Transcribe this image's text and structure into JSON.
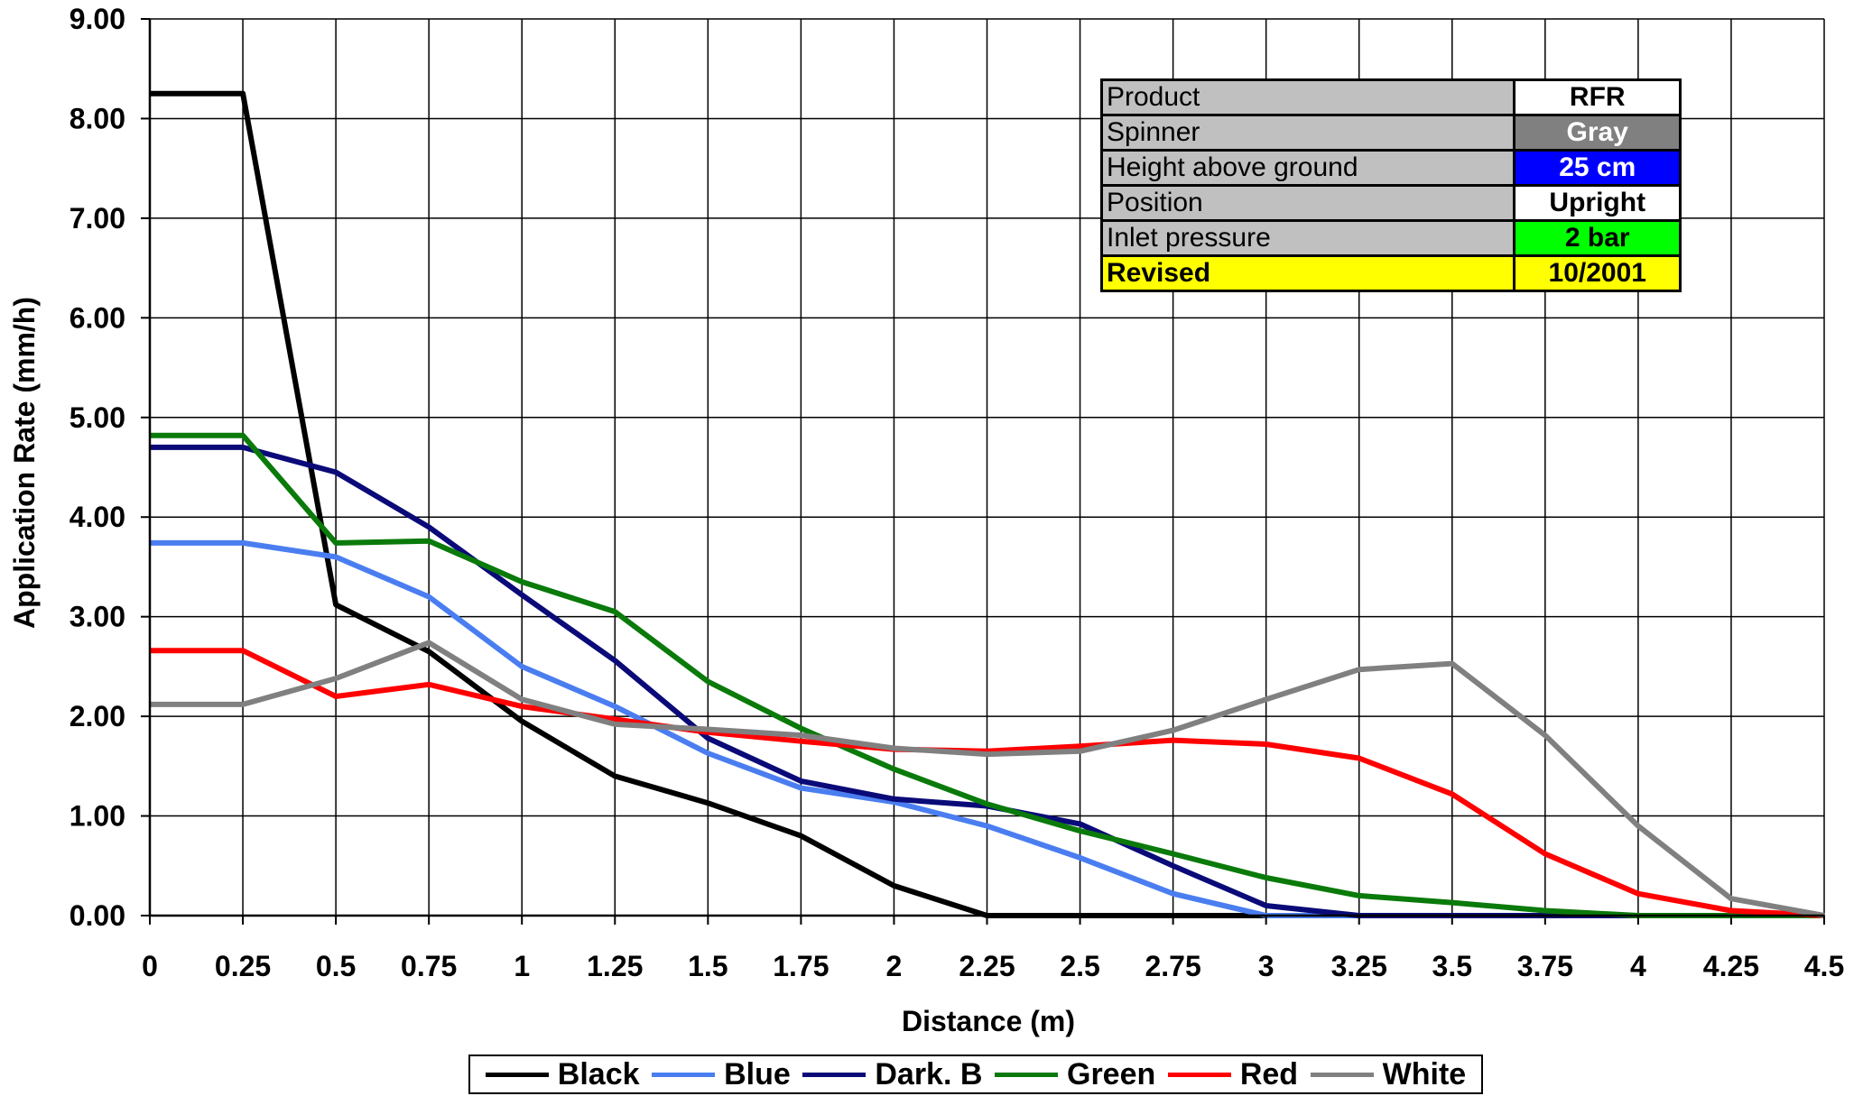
{
  "chart_data": {
    "type": "line",
    "title": "",
    "xlabel": "Distance (m)",
    "ylabel": "Application Rate (mm/h)",
    "x": [
      0,
      0.25,
      0.5,
      0.75,
      1,
      1.25,
      1.5,
      1.75,
      2,
      2.25,
      2.5,
      2.75,
      3,
      3.25,
      3.5,
      3.75,
      4,
      4.25,
      4.5
    ],
    "x_tick_labels": [
      "0",
      "0.25",
      "0.5",
      "0.75",
      "1",
      "1.25",
      "1.5",
      "1.75",
      "2",
      "2.25",
      "2.5",
      "2.75",
      "3",
      "3.25",
      "3.5",
      "3.75",
      "4",
      "4.25",
      "4.5"
    ],
    "y_tick_labels": [
      "0.00",
      "1.00",
      "2.00",
      "3.00",
      "4.00",
      "5.00",
      "6.00",
      "7.00",
      "8.00",
      "9.00"
    ],
    "xlim": [
      0,
      4.5
    ],
    "ylim": [
      0,
      9
    ],
    "grid": true,
    "legend_position": "bottom",
    "series": [
      {
        "name": "Black",
        "color": "#000000",
        "values": [
          8.25,
          8.25,
          3.12,
          2.65,
          1.95,
          1.4,
          1.13,
          0.8,
          0.3,
          0,
          0,
          0,
          0,
          0,
          0,
          0,
          0,
          0,
          0
        ]
      },
      {
        "name": "Blue",
        "color": "#4a7ef0",
        "values": [
          3.74,
          3.74,
          3.6,
          3.2,
          2.5,
          2.1,
          1.63,
          1.28,
          1.14,
          0.9,
          0.58,
          0.22,
          0,
          0,
          0,
          0,
          0,
          0,
          0
        ]
      },
      {
        "name": "Dark. B",
        "color": "#0a0a78",
        "values": [
          4.7,
          4.7,
          4.45,
          3.9,
          3.22,
          2.56,
          1.78,
          1.35,
          1.17,
          1.1,
          0.92,
          0.5,
          0.1,
          0,
          0,
          0,
          0,
          0,
          0
        ]
      },
      {
        "name": "Green",
        "color": "#0a7a0a",
        "values": [
          4.82,
          4.82,
          3.74,
          3.76,
          3.35,
          3.05,
          2.35,
          1.88,
          1.47,
          1.12,
          0.85,
          0.62,
          0.38,
          0.2,
          0.13,
          0.05,
          0,
          0,
          0
        ]
      },
      {
        "name": "Red",
        "color": "#ff0000",
        "values": [
          2.66,
          2.66,
          2.2,
          2.32,
          2.1,
          1.97,
          1.84,
          1.75,
          1.67,
          1.65,
          1.7,
          1.76,
          1.72,
          1.58,
          1.22,
          0.62,
          0.22,
          0.05,
          0
        ]
      },
      {
        "name": "White",
        "color": "#808080",
        "values": [
          2.12,
          2.12,
          2.38,
          2.74,
          2.17,
          1.92,
          1.87,
          1.81,
          1.68,
          1.62,
          1.65,
          1.86,
          2.17,
          2.47,
          2.53,
          1.81,
          0.9,
          0.17,
          0
        ]
      }
    ]
  },
  "info_table": {
    "rows": [
      {
        "label": "Product",
        "value": "RFR",
        "bg": "#ffffff",
        "fg": "#000000",
        "label_bg": "#c0c0c0",
        "label_bold": false
      },
      {
        "label": "Spinner",
        "value": "Gray",
        "bg": "#808080",
        "fg": "#ffffff",
        "label_bg": "#c0c0c0",
        "label_bold": false
      },
      {
        "label": "Height above ground",
        "value": "25 cm",
        "bg": "#0000ff",
        "fg": "#ffffff",
        "label_bg": "#c0c0c0",
        "label_bold": false
      },
      {
        "label": "Position",
        "value": "Upright",
        "bg": "#ffffff",
        "fg": "#000000",
        "label_bg": "#c0c0c0",
        "label_bold": false
      },
      {
        "label": "Inlet pressure",
        "value": "2 bar",
        "bg": "#00ff00",
        "fg": "#000000",
        "label_bg": "#c0c0c0",
        "label_bold": false
      },
      {
        "label": "Revised",
        "value": "10/2001",
        "bg": "#ffff00",
        "fg": "#000000",
        "label_bg": "#ffff00",
        "label_bold": true
      }
    ]
  }
}
